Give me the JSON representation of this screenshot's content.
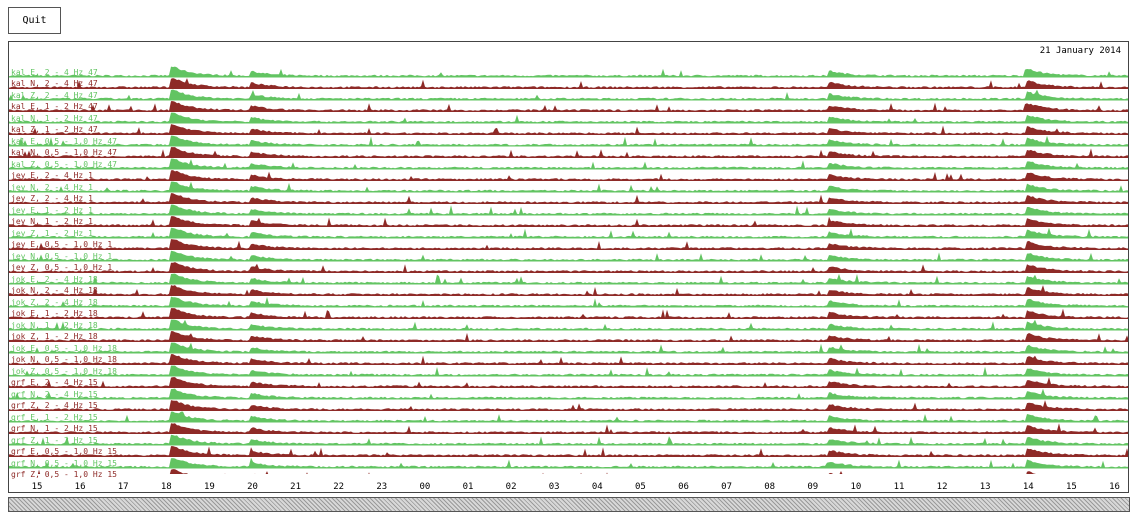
{
  "toolbar": {
    "quit_label": "Quit"
  },
  "plot": {
    "date": "21 January 2014"
  },
  "colors": {
    "green": "#62c462",
    "red": "#8e2a27"
  },
  "chart_data": {
    "type": "area",
    "tracks": [
      {
        "label": "kal E, 2 - 4 Hz 47",
        "color": "green"
      },
      {
        "label": "kal N, 2 - 4 Hz 47",
        "color": "red"
      },
      {
        "label": "kal Z, 2 - 4 Hz 47",
        "color": "green"
      },
      {
        "label": "kal E, 1 - 2 Hz 47",
        "color": "red"
      },
      {
        "label": "kal N, 1 - 2 Hz 47",
        "color": "green"
      },
      {
        "label": "kal Z, 1 - 2 Hz 47",
        "color": "red"
      },
      {
        "label": "kal E, 0,5 - 1,0 Hz 47",
        "color": "green"
      },
      {
        "label": "kal N, 0,5 - 1,0 Hz 47",
        "color": "red"
      },
      {
        "label": "kal Z, 0,5 - 1,0 Hz 47",
        "color": "green"
      },
      {
        "label": "jey E, 2 - 4 Hz 1",
        "color": "red"
      },
      {
        "label": "jey N, 2 - 4 Hz 1",
        "color": "green"
      },
      {
        "label": "jey Z, 2 - 4 Hz 1",
        "color": "red"
      },
      {
        "label": "jey E, 1 - 2 Hz 1",
        "color": "green"
      },
      {
        "label": "jey N, 1 - 2 Hz 1",
        "color": "red"
      },
      {
        "label": "jey Z, 1 - 2 Hz 1",
        "color": "green"
      },
      {
        "label": "jey E, 0,5 - 1,0 Hz 1",
        "color": "red"
      },
      {
        "label": "jey N, 0,5 - 1,0 Hz 1",
        "color": "green"
      },
      {
        "label": "jey Z, 0,5 - 1,0 Hz 1",
        "color": "red"
      },
      {
        "label": "jok E, 2 - 4 Hz 18",
        "color": "green"
      },
      {
        "label": "jok N, 2 - 4 Hz 18",
        "color": "red"
      },
      {
        "label": "jok Z, 2 - 4 Hz 18",
        "color": "green"
      },
      {
        "label": "jok E, 1 - 2 Hz 18",
        "color": "red"
      },
      {
        "label": "jok N, 1 - 2 Hz 18",
        "color": "green"
      },
      {
        "label": "jok Z, 1 - 2 Hz 18",
        "color": "red"
      },
      {
        "label": "jok E, 0,5 - 1,0 Hz 18",
        "color": "green"
      },
      {
        "label": "jok N, 0,5 - 1,0 Hz 18",
        "color": "red"
      },
      {
        "label": "jok Z, 0,5 - 1,0 Hz 18",
        "color": "green"
      },
      {
        "label": "grf E, 2 - 4 Hz 15",
        "color": "red"
      },
      {
        "label": "grf N, 2 - 4 Hz 15",
        "color": "green"
      },
      {
        "label": "grf Z, 2 - 4 Hz 15",
        "color": "red"
      },
      {
        "label": "grf E, 1 - 2 Hz 15",
        "color": "green"
      },
      {
        "label": "grf N, 1 - 2 Hz 15",
        "color": "red"
      },
      {
        "label": "grf Z, 1 - 2 Hz 15",
        "color": "green"
      },
      {
        "label": "grf E, 0,5 - 1,0 Hz 15",
        "color": "red"
      },
      {
        "label": "grf N, 0,5 - 1,0 Hz 15",
        "color": "green"
      },
      {
        "label": "grf Z, 0,5 - 1,0 Hz 15",
        "color": "red"
      }
    ],
    "x_ticks": [
      "15",
      "16",
      "17",
      "18",
      "19",
      "20",
      "21",
      "22",
      "23",
      "00",
      "01",
      "02",
      "03",
      "04",
      "05",
      "06",
      "07",
      "08",
      "09",
      "10",
      "11",
      "12",
      "13",
      "14",
      "15",
      "16"
    ],
    "events": [
      {
        "hour": 18.15,
        "amplitude": 1.0
      },
      {
        "hour": 20.0,
        "amplitude": 0.45
      },
      {
        "hour": 9.4,
        "amplitude": 0.5
      },
      {
        "hour": 14.0,
        "amplitude": 0.7
      }
    ]
  }
}
